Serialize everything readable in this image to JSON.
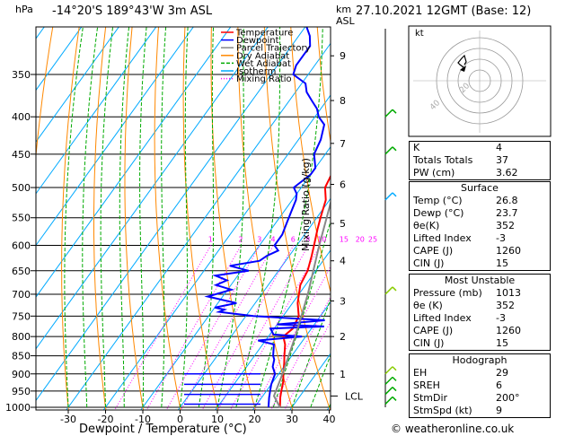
{
  "header": {
    "hpa_label": "hPa",
    "location": "-14°20'S  189°43'W  3m  ASL",
    "km_label": "km",
    "asl_label": "ASL",
    "datetime": "27.10.2021  12GMT  (Base: 12)"
  },
  "legend": [
    "Temperature",
    "Dewpoint",
    "Parcel Trajectory",
    "Dry Adiabat",
    "Wet Adiabat",
    "Isotherm",
    "Mixing Ratio"
  ],
  "legend_colors": [
    "#ff0000",
    "#0000ff",
    "#888888",
    "#ff8800",
    "#00aa00",
    "#00aaff",
    "#ff00ff"
  ],
  "footer": "© weatheronline.co.uk",
  "hodograph": {
    "label": "kt",
    "ring_labels": [
      "20",
      "40"
    ]
  },
  "indices": {
    "general": [
      [
        "K",
        "4"
      ],
      [
        "Totals Totals",
        "37"
      ],
      [
        "PW (cm)",
        "3.62"
      ]
    ],
    "surface_title": "Surface",
    "surface": [
      [
        "Temp (°C)",
        "26.8"
      ],
      [
        "Dewp (°C)",
        "23.7"
      ],
      [
        "θe(K)",
        "352"
      ],
      [
        "Lifted Index",
        "-3"
      ],
      [
        "CAPE (J)",
        "1260"
      ],
      [
        "CIN (J)",
        "15"
      ]
    ],
    "mu_title": "Most Unstable",
    "mu": [
      [
        "Pressure (mb)",
        "1013"
      ],
      [
        "θe (K)",
        "352"
      ],
      [
        "Lifted Index",
        "-3"
      ],
      [
        "CAPE (J)",
        "1260"
      ],
      [
        "CIN (J)",
        "15"
      ]
    ],
    "hodo_title": "Hodograph",
    "hodo": [
      [
        "EH",
        "29"
      ],
      [
        "SREH",
        "6"
      ],
      [
        "StmDir",
        "200°"
      ],
      [
        "StmSpd (kt)",
        "9"
      ]
    ]
  },
  "chart_data": {
    "type": "line",
    "title": "Skew-T log-P sounding",
    "xlabel": "Dewpoint / Temperature (°C)",
    "ylabel": "hPa",
    "right_label": "Mixing Ratio (g/kg)",
    "x_ticks": [
      "-30",
      "-20",
      "-10",
      "0",
      "10",
      "20",
      "30",
      "40"
    ],
    "x_values": [
      -30,
      -20,
      -10,
      0,
      10,
      20,
      30,
      40
    ],
    "xlim": [
      -40,
      40
    ],
    "pressure_levels": [
      350,
      400,
      450,
      500,
      550,
      600,
      650,
      700,
      750,
      800,
      850,
      900,
      950,
      1000
    ],
    "ylim": [
      300,
      1000
    ],
    "km_ticks": [
      {
        "km": "1",
        "p": 900
      },
      {
        "km": "2",
        "p": 800
      },
      {
        "km": "3",
        "p": 715
      },
      {
        "km": "4",
        "p": 630
      },
      {
        "km": "5",
        "p": 560
      },
      {
        "km": "6",
        "p": 495
      },
      {
        "km": "7",
        "p": 435
      },
      {
        "km": "8",
        "p": 380
      },
      {
        "km": "9",
        "p": 330
      }
    ],
    "lcl_label": "LCL",
    "lcl_pressure": 965,
    "mixing_ratio_labels": [
      "1",
      "2",
      "3",
      "4",
      "6",
      "8",
      "10",
      "15",
      "20",
      "25"
    ],
    "mixing_ratio_values": [
      1,
      2,
      3,
      4,
      6,
      8,
      10,
      15,
      20,
      25
    ],
    "series": [
      {
        "name": "Temperature",
        "color": "#ff0000",
        "p": [
          1000,
          970,
          950,
          920,
          900,
          870,
          850,
          820,
          800,
          780,
          750,
          720,
          700,
          680,
          650,
          620,
          600,
          570,
          550,
          520,
          500,
          480,
          450,
          420,
          400,
          380,
          350,
          330,
          310
        ],
        "t": [
          26.8,
          25,
          24,
          22.6,
          21.2,
          19.4,
          18,
          16,
          14,
          15,
          14.2,
          11.4,
          10,
          8.6,
          7.8,
          6,
          4.6,
          2.4,
          1,
          -1,
          -3.6,
          -4.4,
          -8,
          -11.6,
          -14,
          -16.6,
          -20.8,
          -24,
          -27
        ]
      },
      {
        "name": "Dewpoint",
        "color": "#0000ff",
        "p": [
          1000,
          970,
          950,
          930,
          900,
          880,
          860,
          850,
          820,
          810,
          800,
          795,
          780,
          775,
          770,
          760,
          750,
          740,
          735,
          730,
          720,
          705,
          690,
          680,
          670,
          660,
          650,
          640,
          630,
          620,
          610,
          600,
          580,
          560,
          540,
          520,
          510,
          500,
          480,
          470,
          450,
          430,
          410,
          400,
          390,
          380,
          370,
          360,
          350,
          340,
          320,
          310,
          300
        ],
        "t": [
          23.7,
          22,
          21,
          20,
          19,
          17,
          16,
          15,
          13,
          8,
          19,
          11,
          9,
          23,
          10,
          22,
          2,
          -8,
          -7,
          -10,
          -5,
          -14,
          -9,
          -14,
          -12,
          -16,
          -8,
          -14,
          -7,
          -6,
          -4,
          -6,
          -6,
          -7,
          -8,
          -9,
          -10,
          -12,
          -10,
          -10,
          -13,
          -14,
          -16,
          -19,
          -21,
          -24,
          -27,
          -29,
          -34,
          -35,
          -35,
          -37,
          -40
        ]
      },
      {
        "name": "Parcel Trajectory",
        "color": "#888888",
        "p": [
          1000,
          965,
          900,
          800,
          700,
          600,
          500,
          400,
          330
        ],
        "t": [
          26.8,
          23,
          21,
          17.2,
          12.4,
          6,
          -1,
          -10,
          -18
        ]
      }
    ]
  }
}
